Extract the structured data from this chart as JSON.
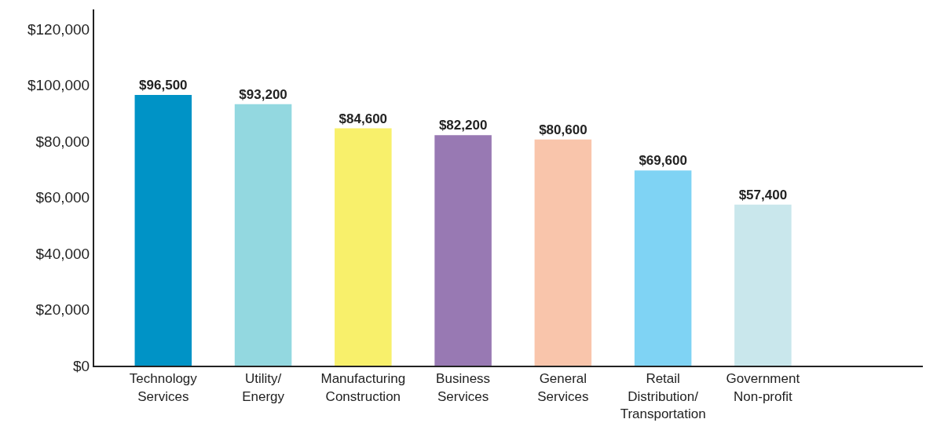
{
  "chart_data": {
    "type": "bar",
    "categories": [
      "Technology\nServices",
      "Utility/\nEnergy",
      "Manufacturing\nConstruction",
      "Business\nServices",
      "General\nServices",
      "Retail\nDistribution/\nTransportation",
      "Government\nNon-profit"
    ],
    "values": [
      96500,
      93200,
      84600,
      82200,
      80600,
      69600,
      57400
    ],
    "value_labels": [
      "$96,500",
      "$93,200",
      "$84,600",
      "$82,200",
      "$80,600",
      "$69,600",
      "$57,400"
    ],
    "colors": [
      "#0093c6",
      "#93d8e0",
      "#f8f06b",
      "#9879b3",
      "#f9c5ab",
      "#7fd3f4",
      "#c9e7ec"
    ],
    "ylim": [
      0,
      127000
    ],
    "yticks": [
      {
        "value": 0,
        "label": "$0"
      },
      {
        "value": 20000,
        "label": "$20,000"
      },
      {
        "value": 40000,
        "label": "$40,000"
      },
      {
        "value": 60000,
        "label": "$60,000"
      },
      {
        "value": 80000,
        "label": "$80,000"
      },
      {
        "value": 100000,
        "label": "$100,000"
      },
      {
        "value": 120000,
        "label": "$120,000"
      }
    ],
    "legend": false
  }
}
